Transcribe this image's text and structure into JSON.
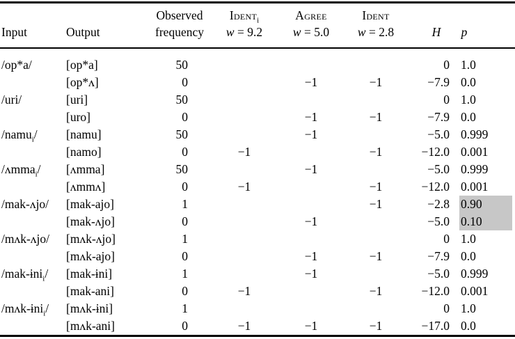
{
  "table": {
    "headers": {
      "input": "Input",
      "output": "Output",
      "observed_line1": "Observed",
      "observed_line2": "frequency",
      "constraints": [
        {
          "name": "Ident",
          "sub": "i",
          "weight_sym": "w",
          "weight_val": "= 9.2"
        },
        {
          "name": "Agree",
          "sub": "",
          "weight_sym": "w",
          "weight_val": "= 5.0"
        },
        {
          "name": "Ident",
          "sub": "",
          "weight_sym": "w",
          "weight_val": "= 2.8"
        }
      ],
      "harmony": "H",
      "probability": "p"
    },
    "highlight_color": "#c7c7c7",
    "rows": [
      {
        "input": "/op*a/",
        "output": "[op*a]",
        "freq": "50",
        "ident_i": "",
        "agree": "",
        "ident": "",
        "h": "0",
        "p": "1.0",
        "hl": false
      },
      {
        "input": "",
        "output": "[op*ʌ]",
        "freq": "0",
        "ident_i": "",
        "agree": "−1",
        "ident": "−1",
        "h": "−7.9",
        "p": "0.0",
        "hl": false
      },
      {
        "input": "/uri/",
        "output": "[uri]",
        "freq": "50",
        "ident_i": "",
        "agree": "",
        "ident": "",
        "h": "0",
        "p": "1.0",
        "hl": false
      },
      {
        "input": "",
        "output": "[uro]",
        "freq": "0",
        "ident_i": "",
        "agree": "−1",
        "ident": "−1",
        "h": "−7.9",
        "p": "0.0",
        "hl": false
      },
      {
        "input": "/namuᵢ/",
        "output": "[namu]",
        "freq": "50",
        "ident_i": "",
        "agree": "−1",
        "ident": "",
        "h": "−5.0",
        "p": "0.999",
        "hl": false
      },
      {
        "input": "",
        "output": "[namo]",
        "freq": "0",
        "ident_i": "−1",
        "agree": "",
        "ident": "−1",
        "h": "−12.0",
        "p": "0.001",
        "hl": false
      },
      {
        "input": "/ʌmmaᵢ/",
        "output": "[ʌmma]",
        "freq": "50",
        "ident_i": "",
        "agree": "−1",
        "ident": "",
        "h": "−5.0",
        "p": "0.999",
        "hl": false
      },
      {
        "input": "",
        "output": "[ʌmmʌ]",
        "freq": "0",
        "ident_i": "−1",
        "agree": "",
        "ident": "−1",
        "h": "−12.0",
        "p": "0.001",
        "hl": false
      },
      {
        "input": "/mak-ʌjo/",
        "output": "[mak-ajo]",
        "freq": "1",
        "ident_i": "",
        "agree": "",
        "ident": "−1",
        "h": "−2.8",
        "p": "0.90",
        "hl": true
      },
      {
        "input": "",
        "output": "[mak-ʌjo]",
        "freq": "0",
        "ident_i": "",
        "agree": "−1",
        "ident": "",
        "h": "−5.0",
        "p": "0.10",
        "hl": true
      },
      {
        "input": "/mʌk-ʌjo/",
        "output": "[mʌk-ʌjo]",
        "freq": "1",
        "ident_i": "",
        "agree": "",
        "ident": "",
        "h": "0",
        "p": "1.0",
        "hl": false
      },
      {
        "input": "",
        "output": "[mʌk-ajo]",
        "freq": "0",
        "ident_i": "",
        "agree": "−1",
        "ident": "−1",
        "h": "−7.9",
        "p": "0.0",
        "hl": false
      },
      {
        "input": "/mak-ɨniᵢ/",
        "output": "[mak-ɨni]",
        "freq": "1",
        "ident_i": "",
        "agree": "−1",
        "ident": "",
        "h": "−5.0",
        "p": "0.999",
        "hl": false
      },
      {
        "input": "",
        "output": "[mak-ani]",
        "freq": "0",
        "ident_i": "−1",
        "agree": "",
        "ident": "−1",
        "h": "−12.0",
        "p": "0.001",
        "hl": false
      },
      {
        "input": "/mʌk-ɨniᵢ/",
        "output": "[mʌk-ɨni]",
        "freq": "1",
        "ident_i": "",
        "agree": "",
        "ident": "",
        "h": "0",
        "p": "1.0",
        "hl": false
      },
      {
        "input": "",
        "output": "[mʌk-ani]",
        "freq": "0",
        "ident_i": "−1",
        "agree": "−1",
        "ident": "−1",
        "h": "−17.0",
        "p": "0.0",
        "hl": false
      }
    ]
  }
}
